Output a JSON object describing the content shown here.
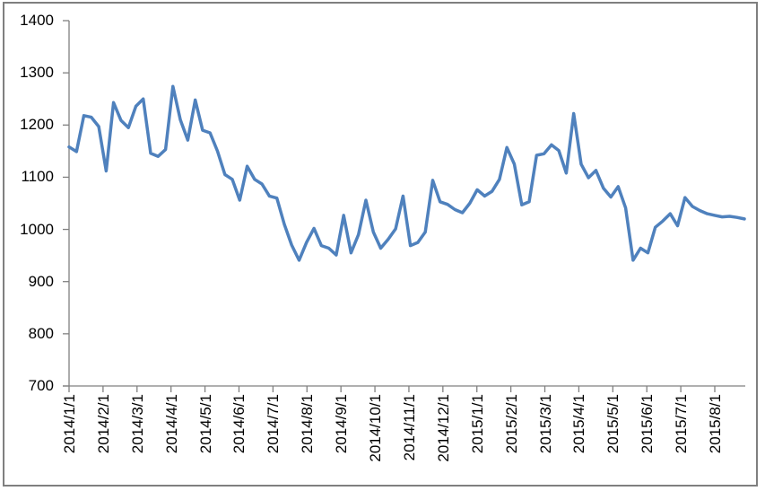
{
  "chart_data": {
    "type": "line",
    "title": "",
    "legend": "none",
    "grid": "off",
    "x_label_rotation": -90,
    "line_color": "#4F81BD",
    "axis_color": "#808080",
    "label_color": "#000000",
    "y_axis": {
      "min": 700,
      "max": 1400,
      "step": 100
    },
    "ylim": [
      700,
      1400
    ],
    "y_tick_labels": [
      "1400",
      "1300",
      "1200",
      "1100",
      "1000",
      "900",
      "800",
      "700"
    ],
    "x_tick_labels": [
      "2014/1/1",
      "2014/2/1",
      "2014/3/1",
      "2014/4/1",
      "2014/5/1",
      "2014/6/1",
      "2014/7/1",
      "2014/8/1",
      "2014/9/1",
      "2014/10/1",
      "2014/11/1",
      "2014/12/1",
      "2015/1/1",
      "2015/2/1",
      "2015/3/1",
      "2015/4/1",
      "2015/5/1",
      "2015/6/1",
      "2015/7/1",
      "2015/8/1"
    ],
    "values": [
      1158,
      1149,
      1218,
      1215,
      1197,
      1112,
      1243,
      1209,
      1195,
      1236,
      1250,
      1146,
      1140,
      1153,
      1274,
      1210,
      1171,
      1248,
      1190,
      1185,
      1150,
      1105,
      1096,
      1056,
      1121,
      1096,
      1087,
      1064,
      1060,
      1010,
      970,
      941,
      975,
      1002,
      969,
      964,
      951,
      1027,
      955,
      990,
      1056,
      995,
      964,
      981,
      1001,
      1064,
      969,
      975,
      995,
      1094,
      1053,
      1048,
      1038,
      1032,
      1050,
      1076,
      1064,
      1073,
      1096,
      1157,
      1125,
      1047,
      1053,
      1142,
      1145,
      1162,
      1151,
      1108,
      1222,
      1125,
      1099,
      1113,
      1079,
      1062,
      1082,
      1041,
      941,
      964,
      955,
      1004,
      1016,
      1030,
      1007,
      1061,
      1044,
      1036,
      1030,
      1027,
      1024,
      1025,
      1023,
      1020
    ]
  }
}
